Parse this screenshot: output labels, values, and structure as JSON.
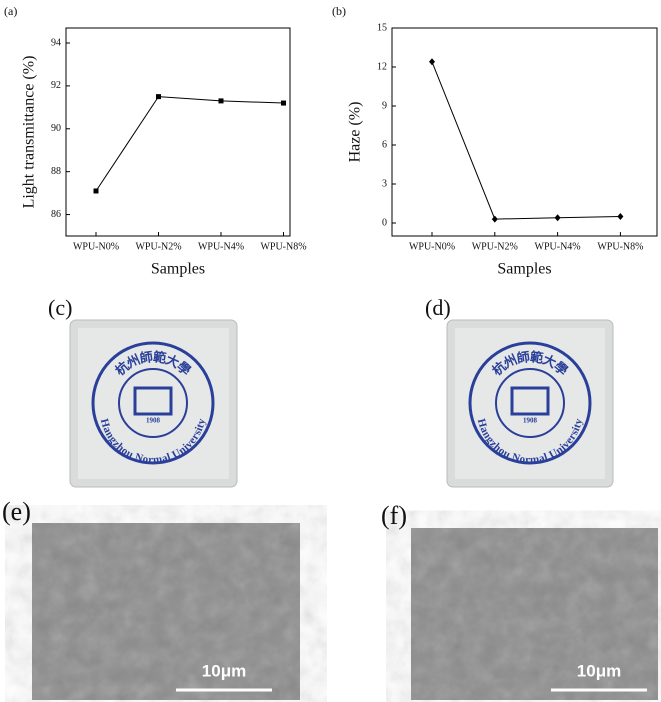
{
  "chart_data": [
    {
      "type": "line",
      "panel": "(a)",
      "xlabel": "Samples",
      "ylabel": "Light transmittance (%)",
      "categories": [
        "WPU-N0%",
        "WPU-N2%",
        "WPU-N4%",
        "WPU-N8%"
      ],
      "values": [
        87.1,
        91.5,
        91.3,
        91.2
      ],
      "color": "#000000",
      "marker": "square",
      "ylim": [
        85,
        94.7
      ],
      "yticks": [
        86,
        88,
        90,
        92,
        94
      ]
    },
    {
      "type": "line",
      "panel": "(b)",
      "xlabel": "Samples",
      "ylabel": "Haze (%)",
      "categories": [
        "WPU-N0%",
        "WPU-N2%",
        "WPU-N4%",
        "WPU-N8%"
      ],
      "values": [
        12.4,
        0.3,
        0.4,
        0.5
      ],
      "color": "#000000",
      "marker": "diamond",
      "ylim": [
        -1,
        15
      ],
      "yticks": [
        0,
        3,
        6,
        9,
        12,
        15
      ]
    }
  ],
  "panels": [
    {
      "label": "(c)",
      "seal": {
        "title": "杭州師範大學",
        "name": "Hangzhou Normal University",
        "year": "1908"
      }
    },
    {
      "label": "(d)",
      "seal": {
        "title": "杭州師範大學",
        "name": "Hangzhou Normal University",
        "year": "1908"
      }
    },
    {
      "label": "(e)",
      "scale_bar": "10μm"
    },
    {
      "label": "(f)",
      "scale_bar": "10μm"
    }
  ]
}
